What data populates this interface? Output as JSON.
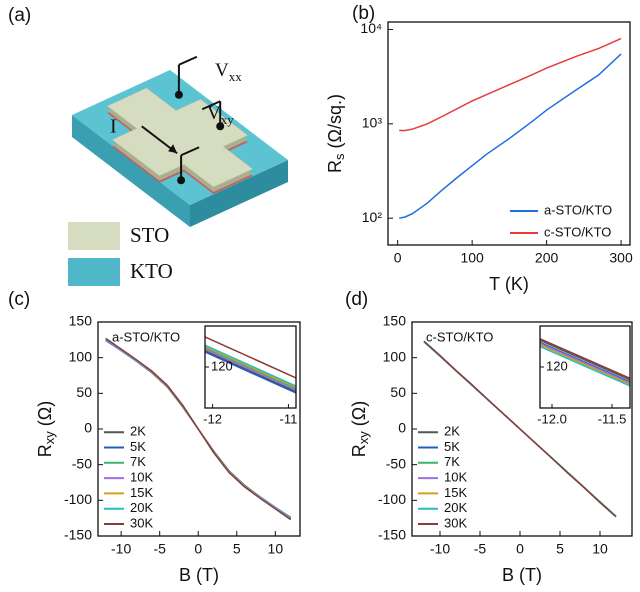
{
  "diagram": {
    "panel": "(a)",
    "current": "I",
    "vxx": [
      "V",
      "xx"
    ],
    "vxy": [
      "V",
      "xy"
    ],
    "sto": "STO",
    "kto": "KTO"
  },
  "chart_data": [
    {
      "type": "line",
      "panel": "(b)",
      "xlabel": "T (K)",
      "ylabel": [
        "R",
        "s",
        " (Ω/sq.)"
      ],
      "log_y": true,
      "xlim": [
        -13,
        312
      ],
      "xticks": [
        0,
        100,
        200,
        300
      ],
      "ylim": [
        52,
        12000
      ],
      "yticks": [
        {
          "value": 100,
          "label": "10²"
        },
        {
          "value": 1000,
          "label": "10³"
        },
        {
          "value": 10000,
          "label": "10⁴"
        }
      ],
      "legend": "lower right",
      "x": [
        2,
        10,
        20,
        40,
        60,
        80,
        100,
        120,
        150,
        180,
        200,
        240,
        270,
        300
      ],
      "series": [
        {
          "name": "a-STO/KTO",
          "color": "#1f6fe0",
          "values": [
            100,
            103,
            112,
            145,
            200,
            270,
            360,
            480,
            700,
            1050,
            1400,
            2300,
            3300,
            5500
          ]
        },
        {
          "name": "c-STO/KTO",
          "color": "#e83a3a",
          "values": [
            850,
            850,
            880,
            1000,
            1200,
            1450,
            1750,
            2050,
            2600,
            3300,
            3900,
            5200,
            6300,
            8000
          ]
        }
      ]
    },
    {
      "type": "line",
      "panel": "(c)",
      "annotation": "a-STO/KTO",
      "xlabel": "B (T)",
      "ylabel": [
        "R",
        "xy",
        " (Ω)"
      ],
      "xlim": [
        -13,
        13.2
      ],
      "xticks": [
        -10,
        -5,
        0,
        5,
        10
      ],
      "ylim": [
        -150,
        150
      ],
      "yticks": [
        -150,
        -100,
        -50,
        0,
        50,
        100,
        150
      ],
      "legend": "lower left",
      "x": [
        -12,
        -10,
        -8,
        -6,
        -4,
        -2,
        0,
        2,
        4,
        6,
        8,
        10,
        12
      ],
      "series": [
        {
          "name": "2K",
          "color": "#555555",
          "values": [
            125,
            110,
            95,
            79,
            59,
            31,
            0,
            -31,
            -59,
            -79,
            -95,
            -110,
            -125
          ]
        },
        {
          "name": "5K",
          "color": "#1f5fbf",
          "values": [
            124,
            110,
            95,
            79,
            59,
            31,
            0,
            -31,
            -59,
            -79,
            -95,
            -110,
            -124
          ]
        },
        {
          "name": "7K",
          "color": "#3cb371",
          "values": [
            125,
            111,
            95,
            80,
            60,
            32,
            0,
            -32,
            -60,
            -80,
            -95,
            -111,
            -125
          ]
        },
        {
          "name": "10K",
          "color": "#a070e0",
          "values": [
            125,
            110,
            95,
            80,
            60,
            32,
            0,
            -32,
            -60,
            -80,
            -95,
            -110,
            -125
          ]
        },
        {
          "name": "15K",
          "color": "#d4a017",
          "values": [
            126,
            111,
            96,
            80,
            60,
            32,
            0,
            -32,
            -60,
            -80,
            -96,
            -111,
            -126
          ]
        },
        {
          "name": "20K",
          "color": "#20c0c0",
          "values": [
            126,
            111,
            96,
            81,
            61,
            33,
            0,
            -33,
            -61,
            -81,
            -96,
            -111,
            -126
          ]
        },
        {
          "name": "30K",
          "color": "#8b3a3a",
          "values": [
            127,
            112,
            97,
            81,
            61,
            33,
            0,
            -33,
            -61,
            -81,
            -97,
            -112,
            -127
          ]
        }
      ],
      "inset": {
        "xlim": [
          -12.1,
          -10.9
        ],
        "ylim": [
          105,
          135
        ],
        "xticks": [
          -12,
          -11
        ],
        "yticks": [
          120
        ],
        "x": [
          -12.1,
          -10.9
        ],
        "series": [
          {
            "color": "#555555",
            "values": [
              126,
              111
            ]
          },
          {
            "color": "#1f5fbf",
            "values": [
              125.5,
              110.5
            ]
          },
          {
            "color": "#3cb371",
            "values": [
              127,
              112
            ]
          },
          {
            "color": "#a070e0",
            "values": [
              126.5,
              111.5
            ]
          },
          {
            "color": "#d4a017",
            "values": [
              127.5,
              112.5
            ]
          },
          {
            "color": "#20c0c0",
            "values": [
              128,
              113
            ]
          },
          {
            "color": "#8b3a3a",
            "values": [
              131,
              116
            ]
          }
        ]
      }
    },
    {
      "type": "line",
      "panel": "(d)",
      "annotation": "c-STO/KTO",
      "xlabel": "B (T)",
      "ylabel": [
        "R",
        "xy",
        " (Ω)"
      ],
      "xlim": [
        -13.5,
        14
      ],
      "xticks": [
        -10,
        -5,
        0,
        5,
        10
      ],
      "ylim": [
        -150,
        150
      ],
      "yticks": [
        -150,
        -100,
        -50,
        0,
        50,
        100,
        150
      ],
      "legend": "lower left",
      "x": [
        -12,
        -10,
        -8,
        -6,
        -4,
        -2,
        0,
        2,
        4,
        6,
        8,
        10,
        12
      ],
      "series": [
        {
          "name": "2K",
          "color": "#555555",
          "values": [
            123,
            103,
            82,
            62,
            41,
            20.5,
            0,
            -20.5,
            -41,
            -62,
            -82,
            -103,
            -123
          ]
        },
        {
          "name": "5K",
          "color": "#1f5fbf",
          "values": [
            123,
            102.5,
            82,
            61.5,
            41,
            20.5,
            0,
            -20.5,
            -41,
            -61.5,
            -82,
            -102.5,
            -123
          ]
        },
        {
          "name": "7K",
          "color": "#3cb371",
          "values": [
            122.5,
            102,
            82,
            61.5,
            41,
            20.5,
            0,
            -20.5,
            -41,
            -61.5,
            -82,
            -102,
            -122.5
          ]
        },
        {
          "name": "10K",
          "color": "#a070e0",
          "values": [
            122.5,
            102,
            82,
            61.5,
            41,
            20.5,
            0,
            -20.5,
            -41,
            -61.5,
            -82,
            -102,
            -122.5
          ]
        },
        {
          "name": "15K",
          "color": "#d4a017",
          "values": [
            122.5,
            102,
            81.5,
            61,
            41,
            20.5,
            0,
            -20.5,
            -41,
            -61,
            -81.5,
            -102,
            -122.5
          ]
        },
        {
          "name": "20K",
          "color": "#20c0c0",
          "values": [
            122,
            102,
            81.5,
            61,
            40.5,
            20.5,
            0,
            -20.5,
            -40.5,
            -61,
            -81.5,
            -102,
            -122
          ]
        },
        {
          "name": "30K",
          "color": "#8b3a3a",
          "values": [
            123,
            103,
            82,
            62,
            41,
            20.5,
            0,
            -20.5,
            -41,
            -62,
            -82,
            -103,
            -123
          ]
        }
      ],
      "inset": {
        "xlim": [
          -12.1,
          -11.35
        ],
        "ylim": [
          112,
          128
        ],
        "xticks": [
          {
            "value": -12,
            "label": "-12.0"
          },
          {
            "value": -11.5,
            "label": "-11.5"
          }
        ],
        "yticks": [
          120
        ],
        "x": [
          -12.1,
          -11.35
        ],
        "series": [
          {
            "color": "#555555",
            "values": [
              125.2,
              117.5
            ]
          },
          {
            "color": "#1f5fbf",
            "values": [
              124.8,
              117.1
            ]
          },
          {
            "color": "#3cb371",
            "values": [
              124.5,
              116.8
            ]
          },
          {
            "color": "#a070e0",
            "values": [
              124.6,
              116.9
            ]
          },
          {
            "color": "#d4a017",
            "values": [
              124.3,
              116.6
            ]
          },
          {
            "color": "#20c0c0",
            "values": [
              124.0,
              116.3
            ]
          },
          {
            "color": "#8b3a3a",
            "values": [
              125.5,
              117.8
            ]
          }
        ]
      }
    }
  ]
}
